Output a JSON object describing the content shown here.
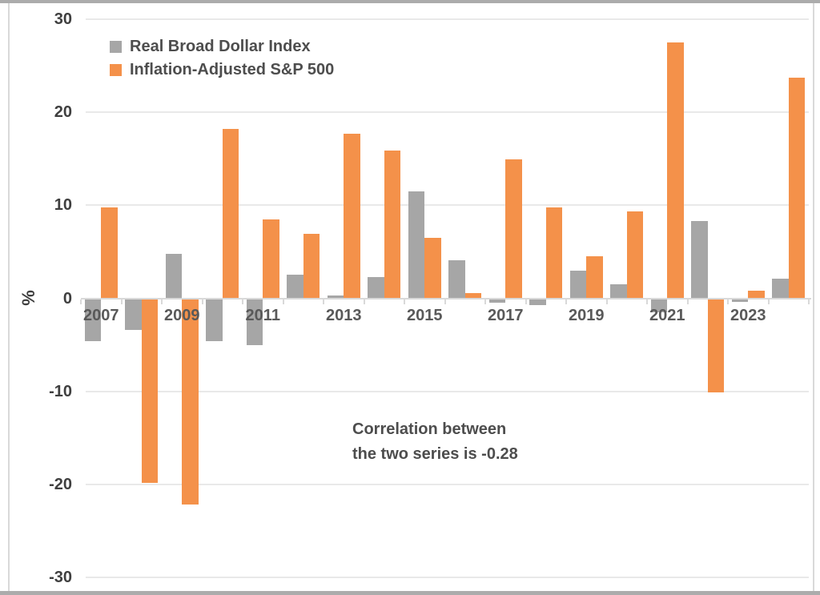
{
  "legend": {
    "items": [
      {
        "label": "Real Broad Dollar Index",
        "color": "#a6a6a6"
      },
      {
        "label": "Inflation-Adjusted S&P 500",
        "color": "#f4914a"
      }
    ]
  },
  "y_axis": {
    "title": "%"
  },
  "annotation": {
    "lines": [
      "Correlation between",
      "the two series is -0.28"
    ]
  },
  "chart_data": {
    "type": "bar",
    "title": "",
    "xlabel": "",
    "ylabel": "%",
    "ylim": [
      -30,
      30
    ],
    "y_ticks": [
      30,
      20,
      10,
      0,
      -10,
      -20,
      -30
    ],
    "grid": true,
    "legend_position": "top-left",
    "annotation": "Correlation between the two series is -0.28",
    "categories": [
      "2007",
      "2008",
      "2009",
      "2010",
      "2011",
      "2012",
      "2013",
      "2014",
      "2015",
      "2016",
      "2017",
      "2018",
      "2019",
      "2020",
      "2021",
      "2022",
      "2023",
      "2024"
    ],
    "x_tick_labels": [
      "2007",
      "2009",
      "2011",
      "2013",
      "2015",
      "2017",
      "2019",
      "2021",
      "2023"
    ],
    "series": [
      {
        "name": "Real Broad Dollar Index",
        "color": "#a6a6a6",
        "values": [
          -4.6,
          -3.4,
          4.8,
          -4.6,
          -5.0,
          2.5,
          0.3,
          2.3,
          11.5,
          4.1,
          -0.5,
          -0.7,
          3.0,
          1.5,
          -1.5,
          8.3,
          -0.4,
          2.1
        ]
      },
      {
        "name": "Inflation-Adjusted S&P 500",
        "color": "#f4914a",
        "values": [
          9.8,
          -19.8,
          -22.2,
          18.2,
          8.5,
          6.9,
          17.7,
          15.9,
          6.5,
          0.6,
          14.9,
          9.8,
          4.5,
          9.3,
          27.5,
          -10.1,
          0.8,
          23.7
        ]
      }
    ]
  }
}
